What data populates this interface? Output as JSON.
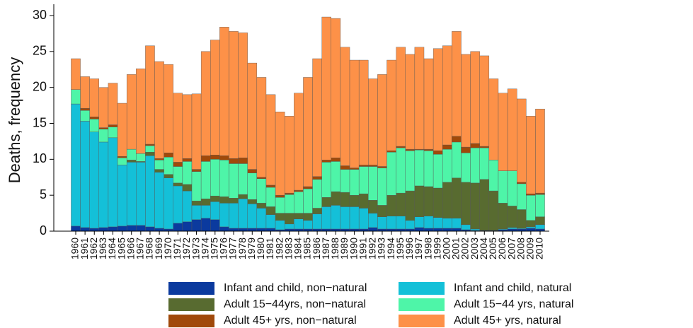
{
  "chart_data": {
    "type": "stacked_bar",
    "y_label": "Deaths, frequency",
    "ylim": [
      0,
      30
    ],
    "yticks": [
      0,
      5,
      10,
      15,
      20,
      25,
      30
    ],
    "grid": false,
    "categories": [
      "1960",
      "1961",
      "1962",
      "1963",
      "1964",
      "1965",
      "1966",
      "1967",
      "1968",
      "1969",
      "1970",
      "1971",
      "1972",
      "1973",
      "1974",
      "1975",
      "1976",
      "1977",
      "1978",
      "1979",
      "1980",
      "1981",
      "1982",
      "1983",
      "1984",
      "1985",
      "1986",
      "1987",
      "1988",
      "1989",
      "1990",
      "1991",
      "1992",
      "1993",
      "1994",
      "1995",
      "1996",
      "1997",
      "1998",
      "1999",
      "2000",
      "2001",
      "2002",
      "2003",
      "2004",
      "2005",
      "2006",
      "2007",
      "2008",
      "2009",
      "2010"
    ],
    "series": [
      {
        "name": "Infant and child, non−natural",
        "color": "#0b3a9e",
        "values": [
          0.7,
          0.5,
          0.4,
          0.5,
          0.6,
          0.7,
          0.8,
          0.8,
          0.6,
          0.4,
          0.3,
          1.1,
          1.3,
          1.6,
          1.8,
          1.6,
          0.6,
          0.4,
          0.4,
          0.4,
          0.4,
          0.4,
          0.2,
          0.3,
          0.3,
          0.3,
          0.3,
          0.3,
          0.3,
          0.3,
          0.3,
          0.3,
          0.5,
          0.3,
          0.3,
          0.3,
          0.3,
          0.5,
          0.4,
          0.4,
          0.4,
          0.4,
          0.2,
          0.1,
          0.1,
          0.1,
          0.2,
          0.3,
          0.3,
          0.4,
          0.3
        ]
      },
      {
        "name": "Infant and child, natural",
        "color": "#14c0d8",
        "values": [
          17.0,
          14.8,
          13.4,
          11.9,
          12.4,
          8.5,
          8.8,
          8.8,
          9.9,
          7.8,
          7.1,
          5.2,
          4.3,
          2.0,
          1.8,
          2.5,
          3.3,
          3.5,
          4.1,
          3.4,
          2.8,
          1.9,
          1.3,
          0.7,
          1.4,
          1.2,
          2.1,
          3.1,
          3.3,
          3.1,
          3.1,
          2.9,
          2.0,
          1.7,
          1.8,
          1.8,
          1.2,
          1.5,
          1.7,
          1.5,
          1.4,
          1.4,
          0.7,
          0.2,
          0,
          0,
          0.1,
          0.2,
          0.1,
          0.2,
          0.6
        ]
      },
      {
        "name": "Adult 15−44yrs, non−natural",
        "color": "#586b30",
        "values": [
          0,
          0,
          0,
          0,
          0,
          0,
          0.3,
          0.1,
          0.5,
          0.4,
          0.5,
          0.4,
          0.9,
          0.6,
          0.9,
          0.8,
          0.9,
          0.7,
          0.6,
          0.6,
          0.7,
          1.1,
          1.0,
          1.5,
          0.8,
          1.0,
          0.8,
          1.3,
          1.9,
          2.0,
          1.6,
          2.0,
          1.8,
          1.6,
          2.9,
          3.2,
          4.1,
          4.3,
          4.1,
          4.1,
          5.0,
          5.6,
          5.9,
          6.4,
          7.1,
          5.5,
          3.6,
          3.0,
          2.6,
          0.9,
          1.1
        ]
      },
      {
        "name": "Adult 15−44 yrs, natural",
        "color": "#4ef5a8",
        "values": [
          2.0,
          1.5,
          1.8,
          1.8,
          1.5,
          1.0,
          1.5,
          1.1,
          0.9,
          1.3,
          2.4,
          2.3,
          3.2,
          4.1,
          5.2,
          5.1,
          5.1,
          4.8,
          4.3,
          3.7,
          3.4,
          2.7,
          2.2,
          2.6,
          3.0,
          3.4,
          4.0,
          4.9,
          4.2,
          3.2,
          3.6,
          3.8,
          4.7,
          5.2,
          6.0,
          6.3,
          5.6,
          5.0,
          5.0,
          4.7,
          4.6,
          5.0,
          4.1,
          4.9,
          4.4,
          4.3,
          4.5,
          4.9,
          3.6,
          3.5,
          3.1
        ]
      },
      {
        "name": "Adult 45+ yrs, non−natural",
        "color": "#a0490a",
        "values": [
          0,
          0.3,
          0.3,
          0.2,
          0.3,
          0.2,
          0,
          0,
          0.2,
          0.2,
          0.6,
          0.6,
          0.4,
          0.3,
          0.8,
          0.6,
          0.6,
          0.7,
          0.8,
          0.5,
          0.2,
          0.3,
          0.3,
          0.2,
          0.2,
          0.3,
          0.4,
          0.3,
          0.5,
          0.5,
          0.2,
          0.2,
          0.2,
          0.2,
          0.2,
          0.2,
          0.2,
          0.1,
          0.2,
          0.5,
          0.6,
          0.8,
          0.8,
          0.6,
          0.2,
          0,
          0,
          0,
          0.2,
          0.2,
          0.2
        ]
      },
      {
        "name": "Adult 45+ yrs, natural",
        "color": "#fd9148",
        "values": [
          4.3,
          4.4,
          5.3,
          5.6,
          5.8,
          7.4,
          10.4,
          11.8,
          13.7,
          13.5,
          12.3,
          9.6,
          8.9,
          10.5,
          14.5,
          16.0,
          17.9,
          17.7,
          17.4,
          14.8,
          13.9,
          12.6,
          11.6,
          10.7,
          13.5,
          15.2,
          16.4,
          19.9,
          19.4,
          16.5,
          15.0,
          14.6,
          12.0,
          12.8,
          12.6,
          13.8,
          13.2,
          14.2,
          12.6,
          14.2,
          13.8,
          14.6,
          12.9,
          12.8,
          12.6,
          11.3,
          10.8,
          11.4,
          11.6,
          10.8,
          11.7
        ]
      }
    ]
  }
}
